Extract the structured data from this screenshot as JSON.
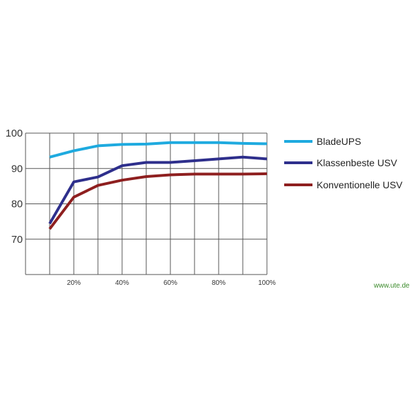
{
  "chart_data": {
    "type": "line",
    "x": [
      10,
      20,
      30,
      40,
      50,
      60,
      70,
      80,
      90,
      100
    ],
    "xlim": [
      0,
      100
    ],
    "ylim": [
      60,
      100
    ],
    "y_ticks": [
      70,
      80,
      90,
      100
    ],
    "x_tick_labels": [
      {
        "x": 20,
        "label": "20%"
      },
      {
        "x": 40,
        "label": "40%"
      },
      {
        "x": 60,
        "label": "60%"
      },
      {
        "x": 80,
        "label": "80%"
      },
      {
        "x": 100,
        "label": "100%"
      }
    ],
    "grid": true,
    "legend": "right",
    "series": [
      {
        "name": "BladeUPS",
        "color": "#1eaadf",
        "values": [
          93.2,
          95.0,
          96.4,
          96.8,
          96.9,
          97.3,
          97.3,
          97.3,
          97.1,
          97.0
        ]
      },
      {
        "name": "Klassenbeste USV",
        "color": "#2e2f8c",
        "values": [
          74.4,
          86.2,
          87.6,
          90.8,
          91.7,
          91.7,
          92.2,
          92.7,
          93.2,
          92.7
        ]
      },
      {
        "name": "Konventionelle USV",
        "color": "#8e1f1f",
        "values": [
          72.9,
          81.9,
          85.2,
          86.7,
          87.7,
          88.2,
          88.4,
          88.4,
          88.4,
          88.5
        ]
      }
    ]
  },
  "credit": "www.ute.de"
}
